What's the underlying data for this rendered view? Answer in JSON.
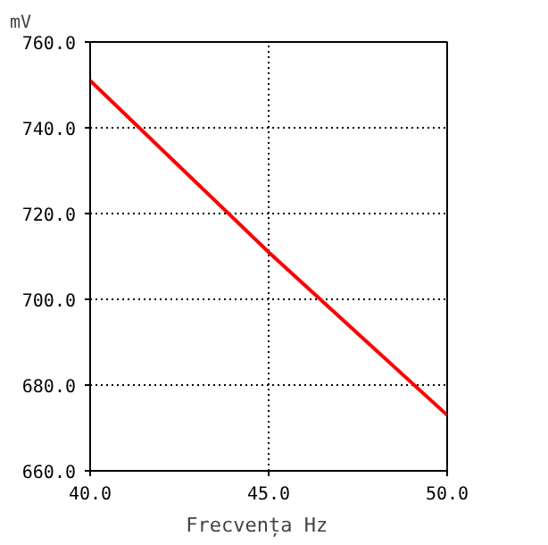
{
  "chart_data": {
    "type": "line",
    "xlabel": "Frecvența   Hz",
    "ylabel": "mV",
    "x": [
      40,
      42.5,
      45,
      47.5,
      50
    ],
    "series": [
      {
        "color": "#ff0000",
        "values": [
          751,
          731,
          711,
          692,
          673
        ]
      }
    ],
    "xlim": [
      40,
      50
    ],
    "ylim": [
      660,
      760
    ],
    "xticks": [
      {
        "value": 40,
        "label": "40.0"
      },
      {
        "value": 45,
        "label": "45.0"
      },
      {
        "value": 50,
        "label": "50.0"
      }
    ],
    "yticks": [
      {
        "value": 660,
        "label": "660.0"
      },
      {
        "value": 680,
        "label": "680.0"
      },
      {
        "value": 700,
        "label": "700.0"
      },
      {
        "value": 720,
        "label": "720.0"
      },
      {
        "value": 740,
        "label": "740.0"
      },
      {
        "value": 760,
        "label": "760.0"
      }
    ],
    "grid": true,
    "line_style": "solid"
  }
}
